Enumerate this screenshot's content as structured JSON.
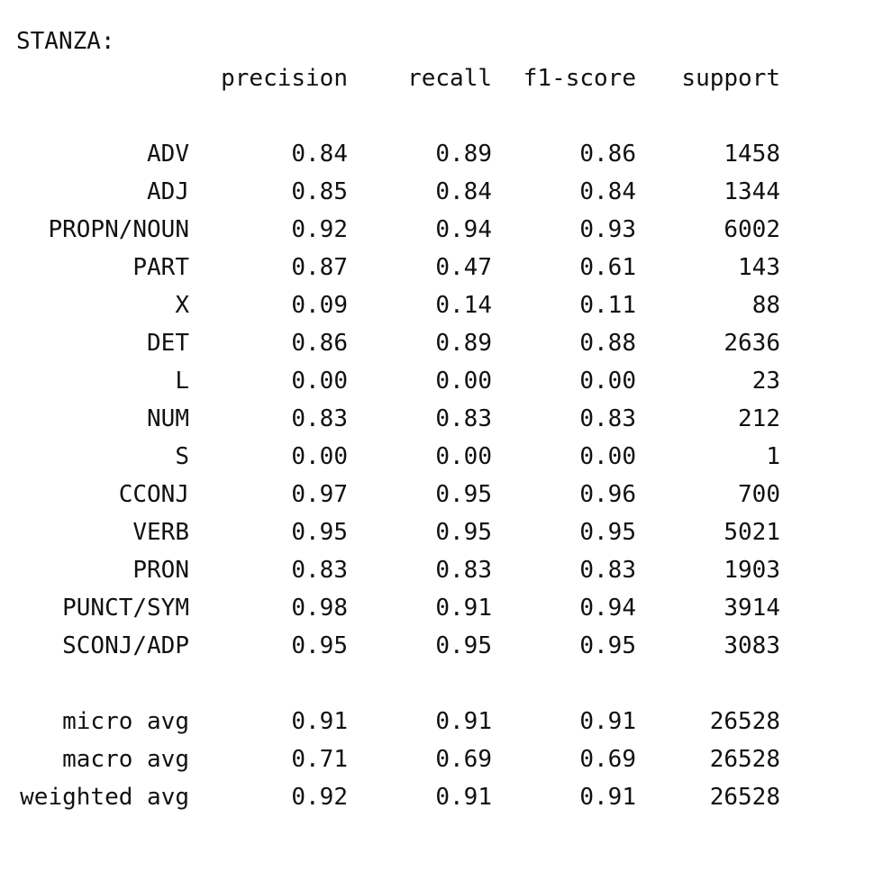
{
  "title": "STANZA:",
  "headers": {
    "precision": "precision",
    "recall": "recall",
    "f1": "f1-score",
    "support": "support"
  },
  "rows": [
    {
      "label": "ADV",
      "precision": "0.84",
      "recall": "0.89",
      "f1": "0.86",
      "support": "1458"
    },
    {
      "label": "ADJ",
      "precision": "0.85",
      "recall": "0.84",
      "f1": "0.84",
      "support": "1344"
    },
    {
      "label": "PROPN/NOUN",
      "precision": "0.92",
      "recall": "0.94",
      "f1": "0.93",
      "support": "6002"
    },
    {
      "label": "PART",
      "precision": "0.87",
      "recall": "0.47",
      "f1": "0.61",
      "support": "143"
    },
    {
      "label": "X",
      "precision": "0.09",
      "recall": "0.14",
      "f1": "0.11",
      "support": "88"
    },
    {
      "label": "DET",
      "precision": "0.86",
      "recall": "0.89",
      "f1": "0.88",
      "support": "2636"
    },
    {
      "label": "L",
      "precision": "0.00",
      "recall": "0.00",
      "f1": "0.00",
      "support": "23"
    },
    {
      "label": "NUM",
      "precision": "0.83",
      "recall": "0.83",
      "f1": "0.83",
      "support": "212"
    },
    {
      "label": "S",
      "precision": "0.00",
      "recall": "0.00",
      "f1": "0.00",
      "support": "1"
    },
    {
      "label": "CCONJ",
      "precision": "0.97",
      "recall": "0.95",
      "f1": "0.96",
      "support": "700"
    },
    {
      "label": "VERB",
      "precision": "0.95",
      "recall": "0.95",
      "f1": "0.95",
      "support": "5021"
    },
    {
      "label": "PRON",
      "precision": "0.83",
      "recall": "0.83",
      "f1": "0.83",
      "support": "1903"
    },
    {
      "label": "PUNCT/SYM",
      "precision": "0.98",
      "recall": "0.91",
      "f1": "0.94",
      "support": "3914"
    },
    {
      "label": "SCONJ/ADP",
      "precision": "0.95",
      "recall": "0.95",
      "f1": "0.95",
      "support": "3083"
    }
  ],
  "averages": [
    {
      "label": "micro avg",
      "precision": "0.91",
      "recall": "0.91",
      "f1": "0.91",
      "support": "26528"
    },
    {
      "label": "macro avg",
      "precision": "0.71",
      "recall": "0.69",
      "f1": "0.69",
      "support": "26528"
    },
    {
      "label": "weighted avg",
      "precision": "0.92",
      "recall": "0.91",
      "f1": "0.91",
      "support": "26528"
    }
  ]
}
